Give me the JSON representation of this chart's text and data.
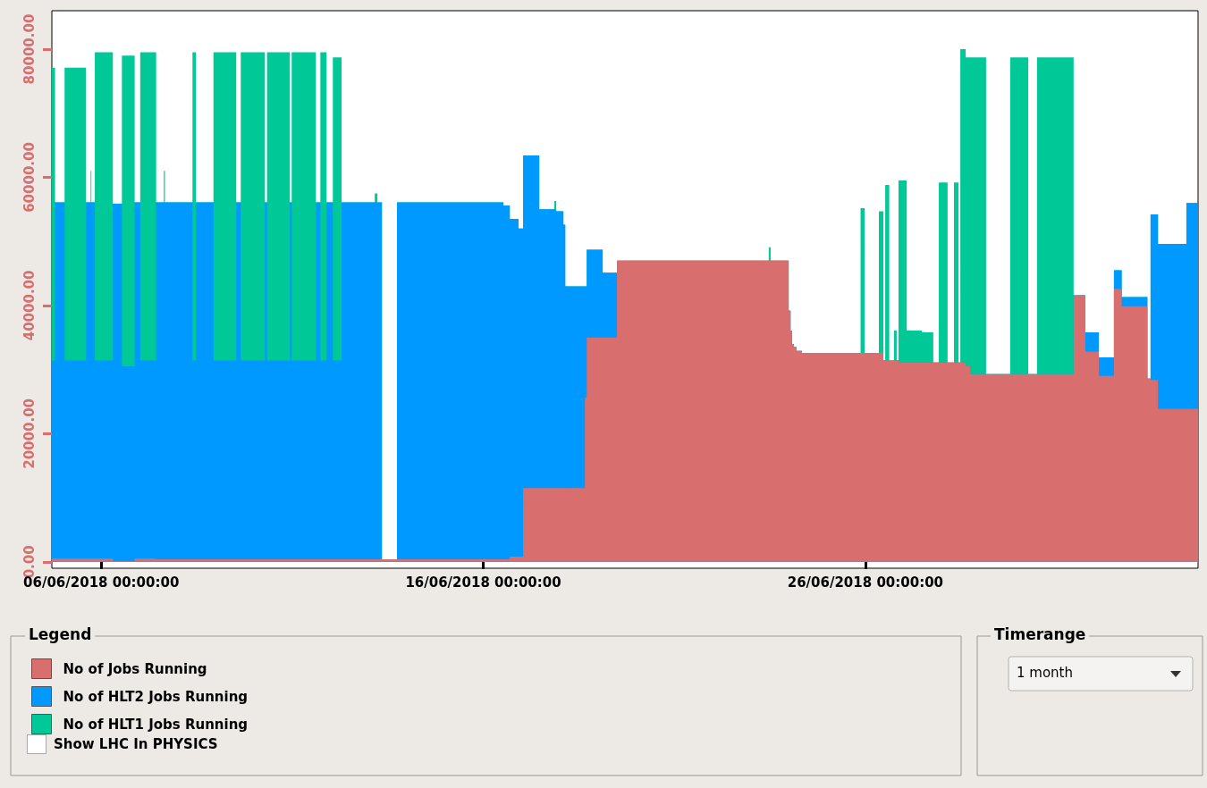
{
  "chart_data": {
    "type": "area",
    "stacked": true,
    "legend": "bottom",
    "legend_title": "Legend",
    "x": [
      "2018-06-04T17:00",
      "2018-06-04T19:00",
      "2018-06-05T01:00",
      "2018-06-05T14:30",
      "2018-06-05T17:20",
      "2018-06-05T17:50",
      "2018-06-05T20:00",
      "2018-06-06T07:20",
      "2018-06-06T13:00",
      "2018-06-06T21:00",
      "2018-06-07T00:30",
      "2018-06-07T10:30",
      "2018-06-07T15:20",
      "2018-06-07T16:00",
      "2018-06-08T09:20",
      "2018-06-08T11:30",
      "2018-06-08T22:30",
      "2018-06-09T12:50",
      "2018-06-09T15:40",
      "2018-06-10T06:50",
      "2018-06-10T08:10",
      "2018-06-10T22:30",
      "2018-06-10T23:40",
      "2018-06-11T14:50",
      "2018-06-11T17:40",
      "2018-06-11T21:30",
      "2018-06-12T01:30",
      "2018-06-12T07:00",
      "2018-06-13T03:50",
      "2018-06-13T05:30",
      "2018-06-13T08:20",
      "2018-06-13T17:50",
      "2018-06-16T12:40",
      "2018-06-16T16:40",
      "2018-06-16T22:10",
      "2018-06-17T01:00",
      "2018-06-17T11:10",
      "2018-06-17T20:40",
      "2018-06-17T21:50",
      "2018-06-18T02:20",
      "2018-06-18T03:30",
      "2018-06-18T15:50",
      "2018-06-18T17:00",
      "2018-06-19T03:00",
      "2018-06-19T12:00",
      "2018-06-23T11:20",
      "2018-06-23T12:30",
      "2018-06-23T23:50",
      "2018-06-24T01:00",
      "2018-06-24T02:00",
      "2018-06-24T03:10",
      "2018-06-24T04:50",
      "2018-06-24T08:10",
      "2018-06-25T21:00",
      "2018-06-25T23:30",
      "2018-06-26T08:30",
      "2018-06-26T11:20",
      "2018-06-26T12:30",
      "2018-06-26T15:00",
      "2018-06-26T18:00",
      "2018-06-26T19:40",
      "2018-06-26T20:50",
      "2018-06-27T02:00",
      "2018-06-27T11:30",
      "2018-06-27T18:40",
      "2018-06-27T22:10",
      "2018-06-28T03:40",
      "2018-06-28T07:40",
      "2018-06-28T10:30",
      "2018-06-28T11:40",
      "2018-06-28T15:00",
      "2018-06-28T17:50",
      "2018-06-29T03:50",
      "2018-06-29T19:00",
      "2018-06-30T06:20",
      "2018-06-30T11:50",
      "2018-07-01T10:50",
      "2018-07-01T18:10",
      "2018-07-02T02:40",
      "2018-07-02T12:10",
      "2018-07-02T17:00",
      "2018-07-03T09:10",
      "2018-07-03T11:10",
      "2018-07-03T15:50",
      "2018-07-04T09:40",
      "2018-07-04T17:00"
    ],
    "series": [
      {
        "name": "No of Jobs Running",
        "color": "#d96e6e",
        "values": [
          500,
          500,
          500,
          500,
          500,
          500,
          500,
          100,
          100,
          500,
          500,
          400,
          400,
          400,
          400,
          400,
          400,
          400,
          400,
          400,
          400,
          400,
          400,
          400,
          400,
          400,
          400,
          400,
          400,
          400,
          400,
          400,
          400,
          800,
          800,
          11500,
          11500,
          11500,
          11500,
          11500,
          11500,
          25600,
          35000,
          35000,
          47000,
          47000,
          47000,
          39200,
          36100,
          34000,
          33500,
          32900,
          32600,
          32600,
          32600,
          32600,
          31400,
          31400,
          31400,
          31400,
          31400,
          31100,
          31100,
          31100,
          31100,
          31100,
          31100,
          31100,
          31100,
          31100,
          30500,
          29300,
          29300,
          29300,
          29300,
          29300,
          41600,
          32800,
          29000,
          42600,
          39900,
          28600,
          28400,
          23900,
          23900,
          23900
        ]
      },
      {
        "name": "No of HLT2 Jobs Running",
        "color": "#0099ff",
        "values": [
          30900,
          55600,
          30900,
          55600,
          55600,
          55600,
          30900,
          55800,
          30400,
          55600,
          30900,
          55700,
          55700,
          55700,
          31000,
          55700,
          31000,
          55700,
          31000,
          55700,
          31000,
          55700,
          31000,
          55700,
          31000,
          55700,
          31000,
          55700,
          55700,
          55700,
          0,
          55700,
          55200,
          52700,
          51200,
          51900,
          43500,
          43500,
          43200,
          41100,
          31500,
          17400,
          13700,
          10100,
          0,
          0,
          0,
          0,
          0,
          0,
          0,
          0,
          0,
          0,
          0,
          0,
          0,
          0,
          0,
          0,
          0,
          0,
          0,
          0,
          0,
          0,
          0,
          0,
          0,
          0,
          0,
          0,
          0,
          0,
          0,
          0,
          0,
          3000,
          2900,
          2900,
          1400,
          0,
          25800,
          25700,
          32100,
          32100
        ]
      },
      {
        "name": "No of HLT1 Jobs Running",
        "color": "#00c896",
        "values": [
          45700,
          0,
          45700,
          0,
          4900,
          0,
          48100,
          0,
          48500,
          0,
          48100,
          0,
          4900,
          0,
          48100,
          0,
          48100,
          0,
          48100,
          0,
          48100,
          0,
          48100,
          0,
          48100,
          0,
          47300,
          0,
          1400,
          0,
          0,
          0,
          0,
          0,
          0,
          0,
          0,
          1300,
          0,
          0,
          0,
          0,
          0,
          0,
          0,
          2100,
          0,
          0,
          0,
          0,
          0,
          0,
          0,
          22600,
          0,
          22100,
          0,
          27400,
          0,
          4700,
          0,
          28400,
          5000,
          4700,
          0,
          28100,
          0,
          28100,
          0,
          48900,
          48200,
          49400,
          0,
          49400,
          0,
          49400,
          0,
          0,
          0,
          0,
          0,
          0,
          0,
          0,
          0,
          0
        ]
      }
    ],
    "xlim": [
      "2018-06-04T17:00",
      "2018-07-04T17:00"
    ],
    "xticks": [
      {
        "value": "2018-06-06T00:00",
        "label": "06/06/2018 00:00:00"
      },
      {
        "value": "2018-06-16T00:00",
        "label": "16/06/2018 00:00:00"
      },
      {
        "value": "2018-06-26T00:00",
        "label": "26/06/2018 00:00:00"
      }
    ],
    "ylim": [
      -1000,
      86000
    ],
    "yticks": [
      {
        "value": 0,
        "label": "0.00"
      },
      {
        "value": 20000,
        "label": "20000.00"
      },
      {
        "value": 40000,
        "label": "40000.00"
      },
      {
        "value": 60000,
        "label": "60000.00"
      },
      {
        "value": 80000,
        "label": "80000.00"
      }
    ],
    "annotations": [
      "Show LHC In PHYSICS",
      "Timerange",
      "1 month"
    ]
  }
}
